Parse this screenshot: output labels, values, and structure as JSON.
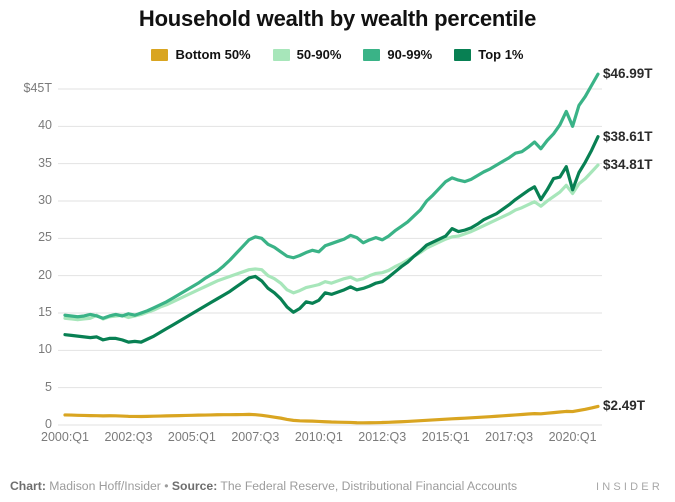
{
  "title": "Household wealth by wealth percentile",
  "legend": {
    "items": [
      {
        "label": "Bottom 50%",
        "color": "#d9a521"
      },
      {
        "label": "50-90%",
        "color": "#a7e6ba"
      },
      {
        "label": "90-99%",
        "color": "#3ab387"
      },
      {
        "label": "Top 1%",
        "color": "#088053"
      }
    ]
  },
  "chart_data": {
    "type": "line",
    "title": "Household wealth by wealth percentile",
    "unit": "trillions of US dollars",
    "grid": true,
    "legend_position": "top",
    "ylim": [
      0,
      47.5
    ],
    "y_ticks": [
      {
        "label": "$45T",
        "value": 45
      },
      {
        "label": "40",
        "value": 40
      },
      {
        "label": "35",
        "value": 35
      },
      {
        "label": "30",
        "value": 30
      },
      {
        "label": "25",
        "value": 25
      },
      {
        "label": "20",
        "value": 20
      },
      {
        "label": "15",
        "value": 15
      },
      {
        "label": "10",
        "value": 10
      },
      {
        "label": "5",
        "value": 5
      },
      {
        "label": "0",
        "value": 0
      }
    ],
    "x_ticks": [
      {
        "label": "2000:Q1",
        "q": 0
      },
      {
        "label": "2002:Q3",
        "q": 10
      },
      {
        "label": "2005:Q1",
        "q": 20
      },
      {
        "label": "2007:Q3",
        "q": 30
      },
      {
        "label": "2010:Q1",
        "q": 40
      },
      {
        "label": "2012:Q3",
        "q": 50
      },
      {
        "label": "2015:Q1",
        "q": 60
      },
      {
        "label": "2017:Q3",
        "q": 70
      },
      {
        "label": "2020:Q1",
        "q": 80
      }
    ],
    "x": [
      "2000:Q1",
      "2000:Q2",
      "2000:Q3",
      "2000:Q4",
      "2001:Q1",
      "2001:Q2",
      "2001:Q3",
      "2001:Q4",
      "2002:Q1",
      "2002:Q2",
      "2002:Q3",
      "2002:Q4",
      "2003:Q1",
      "2003:Q2",
      "2003:Q3",
      "2003:Q4",
      "2004:Q1",
      "2004:Q2",
      "2004:Q3",
      "2004:Q4",
      "2005:Q1",
      "2005:Q2",
      "2005:Q3",
      "2005:Q4",
      "2006:Q1",
      "2006:Q2",
      "2006:Q3",
      "2006:Q4",
      "2007:Q1",
      "2007:Q2",
      "2007:Q3",
      "2007:Q4",
      "2008:Q1",
      "2008:Q2",
      "2008:Q3",
      "2008:Q4",
      "2009:Q1",
      "2009:Q2",
      "2009:Q3",
      "2009:Q4",
      "2010:Q1",
      "2010:Q2",
      "2010:Q3",
      "2010:Q4",
      "2011:Q1",
      "2011:Q2",
      "2011:Q3",
      "2011:Q4",
      "2012:Q1",
      "2012:Q2",
      "2012:Q3",
      "2012:Q4",
      "2013:Q1",
      "2013:Q2",
      "2013:Q3",
      "2013:Q4",
      "2014:Q1",
      "2014:Q2",
      "2014:Q3",
      "2014:Q4",
      "2015:Q1",
      "2015:Q2",
      "2015:Q3",
      "2015:Q4",
      "2016:Q1",
      "2016:Q2",
      "2016:Q3",
      "2016:Q4",
      "2017:Q1",
      "2017:Q2",
      "2017:Q3",
      "2017:Q4",
      "2018:Q1",
      "2018:Q2",
      "2018:Q3",
      "2018:Q4",
      "2019:Q1",
      "2019:Q2",
      "2019:Q3",
      "2019:Q4",
      "2020:Q1",
      "2020:Q2",
      "2020:Q3",
      "2020:Q4",
      "2021:Q1"
    ],
    "series": [
      {
        "name": "Bottom 50%",
        "color": "#d9a521",
        "end_label": "$2.49T",
        "values": [
          1.35,
          1.33,
          1.3,
          1.28,
          1.26,
          1.25,
          1.22,
          1.24,
          1.23,
          1.2,
          1.16,
          1.15,
          1.14,
          1.16,
          1.18,
          1.2,
          1.22,
          1.24,
          1.26,
          1.28,
          1.3,
          1.32,
          1.33,
          1.35,
          1.37,
          1.38,
          1.38,
          1.39,
          1.4,
          1.42,
          1.38,
          1.3,
          1.18,
          1.05,
          0.92,
          0.75,
          0.62,
          0.56,
          0.54,
          0.52,
          0.48,
          0.44,
          0.4,
          0.38,
          0.36,
          0.34,
          0.3,
          0.29,
          0.3,
          0.31,
          0.33,
          0.36,
          0.4,
          0.44,
          0.48,
          0.53,
          0.58,
          0.63,
          0.68,
          0.73,
          0.78,
          0.83,
          0.87,
          0.91,
          0.96,
          1.01,
          1.06,
          1.11,
          1.17,
          1.23,
          1.29,
          1.35,
          1.41,
          1.47,
          1.52,
          1.5,
          1.58,
          1.66,
          1.74,
          1.82,
          1.8,
          1.95,
          2.1,
          2.28,
          2.49
        ]
      },
      {
        "name": "50-90%",
        "color": "#a7e6ba",
        "end_label": "$34.81T",
        "values": [
          14.3,
          14.2,
          14.1,
          14.2,
          14.3,
          14.7,
          14.2,
          14.5,
          14.6,
          14.7,
          14.4,
          14.6,
          14.8,
          15.1,
          15.4,
          15.8,
          16.1,
          16.5,
          16.9,
          17.3,
          17.7,
          18.1,
          18.5,
          18.9,
          19.3,
          19.6,
          19.9,
          20.2,
          20.5,
          20.8,
          20.9,
          20.8,
          20.0,
          19.6,
          19.0,
          18.1,
          17.7,
          18.0,
          18.4,
          18.6,
          18.8,
          19.2,
          19.0,
          19.3,
          19.6,
          19.8,
          19.4,
          19.6,
          20.0,
          20.3,
          20.4,
          20.7,
          21.2,
          21.6,
          22.1,
          22.6,
          23.1,
          23.7,
          24.1,
          24.5,
          24.9,
          25.2,
          25.3,
          25.6,
          25.9,
          26.3,
          26.7,
          27.1,
          27.5,
          27.9,
          28.3,
          28.8,
          29.1,
          29.5,
          29.9,
          29.3,
          30.0,
          30.6,
          31.2,
          32.1,
          31.0,
          32.3,
          33.0,
          33.9,
          34.81
        ]
      },
      {
        "name": "90-99%",
        "color": "#3ab387",
        "end_label": "$46.99T",
        "values": [
          14.7,
          14.6,
          14.5,
          14.6,
          14.8,
          14.6,
          14.3,
          14.6,
          14.8,
          14.6,
          14.9,
          14.7,
          15.0,
          15.3,
          15.7,
          16.1,
          16.5,
          17.0,
          17.5,
          18.0,
          18.5,
          19.0,
          19.6,
          20.1,
          20.6,
          21.3,
          22.1,
          23.0,
          23.9,
          24.8,
          25.2,
          25.0,
          24.2,
          23.8,
          23.2,
          22.6,
          22.4,
          22.7,
          23.1,
          23.4,
          23.2,
          24.0,
          24.3,
          24.6,
          24.9,
          25.4,
          25.1,
          24.4,
          24.8,
          25.1,
          24.8,
          25.3,
          26.0,
          26.6,
          27.2,
          28.0,
          28.8,
          30.0,
          30.8,
          31.7,
          32.6,
          33.1,
          32.8,
          32.6,
          32.9,
          33.4,
          33.9,
          34.3,
          34.8,
          35.3,
          35.8,
          36.4,
          36.6,
          37.2,
          37.9,
          37.0,
          38.1,
          39.0,
          40.2,
          42.0,
          40.0,
          42.8,
          44.0,
          45.5,
          46.99
        ]
      },
      {
        "name": "Top 1%",
        "color": "#088053",
        "end_label": "$38.61T",
        "values": [
          12.1,
          12.0,
          11.9,
          11.8,
          11.7,
          11.8,
          11.4,
          11.6,
          11.6,
          11.4,
          11.1,
          11.2,
          11.1,
          11.5,
          11.9,
          12.4,
          12.9,
          13.4,
          13.9,
          14.4,
          14.9,
          15.4,
          15.9,
          16.4,
          16.9,
          17.4,
          17.9,
          18.5,
          19.1,
          19.7,
          19.9,
          19.3,
          18.3,
          17.7,
          16.9,
          15.8,
          15.1,
          15.6,
          16.5,
          16.3,
          16.7,
          17.7,
          17.5,
          17.8,
          18.1,
          18.5,
          18.1,
          18.3,
          18.6,
          19.0,
          19.2,
          19.8,
          20.5,
          21.2,
          21.8,
          22.6,
          23.3,
          24.1,
          24.5,
          24.9,
          25.3,
          26.3,
          25.9,
          26.1,
          26.4,
          26.9,
          27.5,
          27.9,
          28.3,
          28.9,
          29.5,
          30.2,
          30.8,
          31.4,
          31.9,
          30.2,
          31.5,
          33.0,
          33.2,
          34.6,
          31.5,
          33.8,
          35.2,
          36.8,
          38.61
        ]
      }
    ]
  },
  "footer": {
    "chart_label": "Chart:",
    "chart_credit": " Madison Hoff/Insider ",
    "separator": "•",
    "source_label": " Source:",
    "source_text": " The Federal Reserve, Distributional Financial Accounts",
    "logo": "INSIDER"
  },
  "colors": {
    "background": "#ffffff",
    "gridline": "#e2e2e2",
    "axis_text": "#7b7b7b",
    "title_text": "#111111",
    "annotation_text": "#2b2b2b",
    "footer_text": "#9c9c9c",
    "logo_text": "#a8a8a8"
  }
}
